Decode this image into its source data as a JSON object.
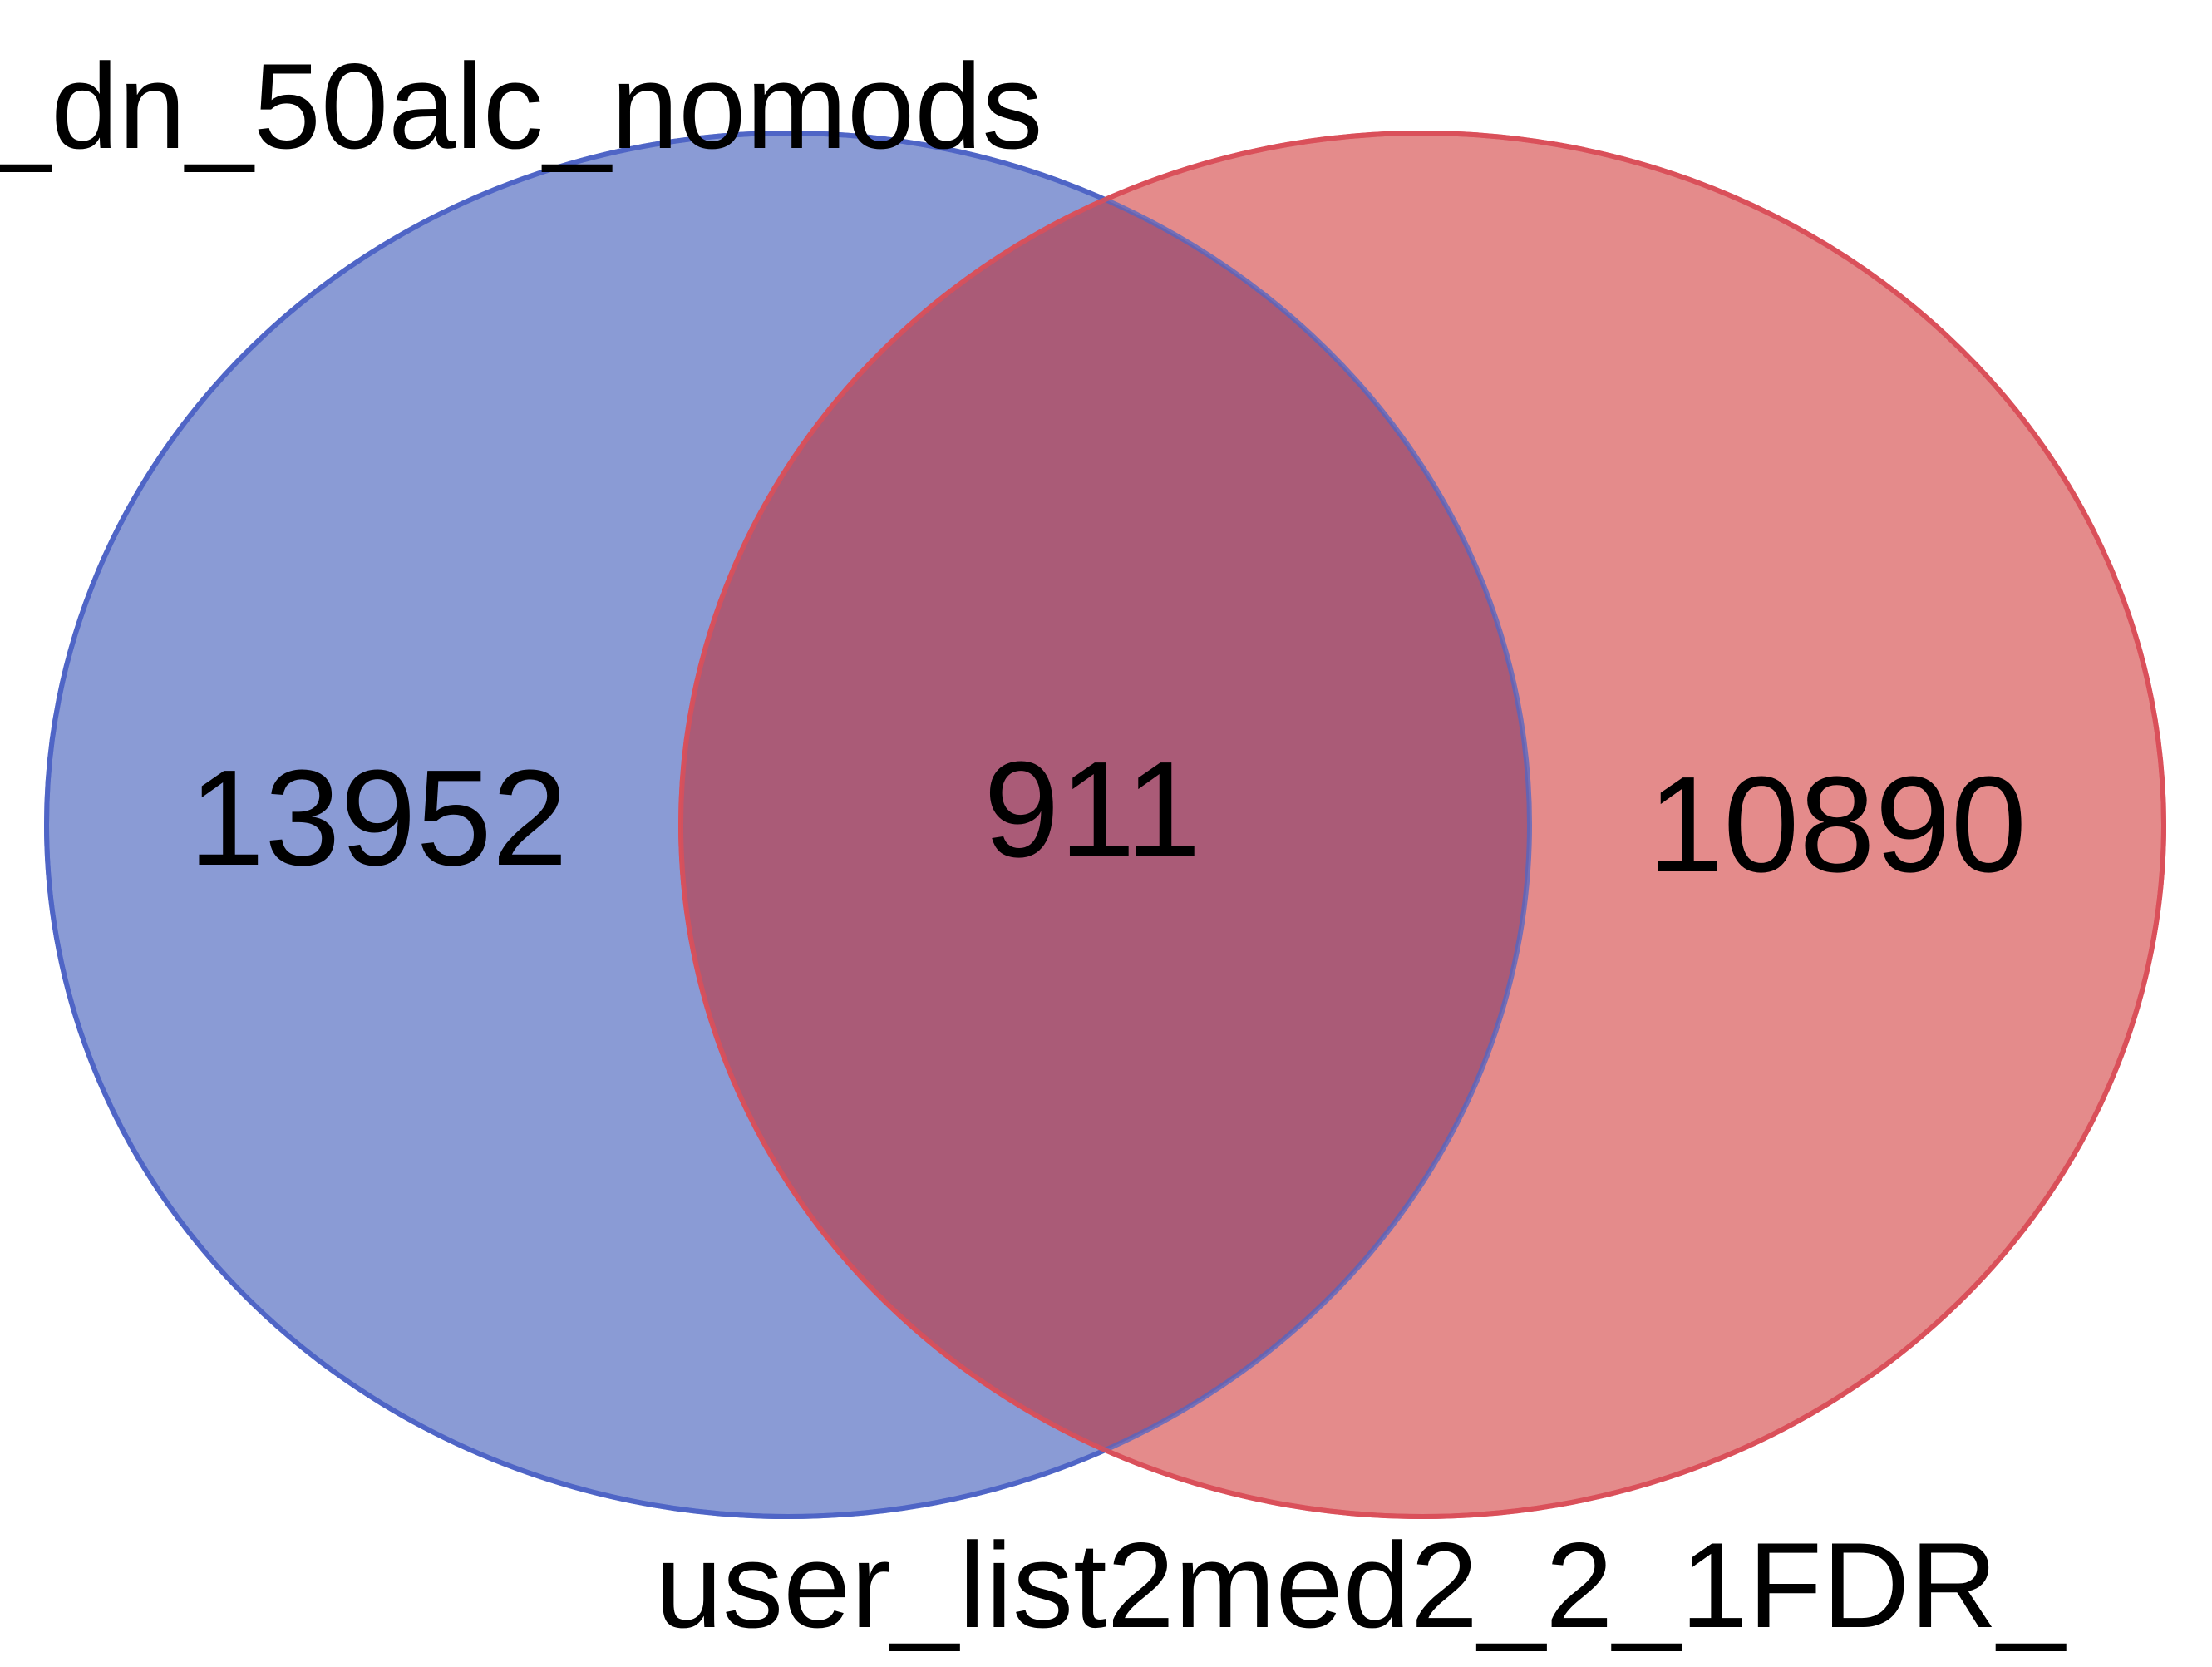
{
  "venn": {
    "sets": [
      {
        "label": "_dn_50alc_nomods",
        "fill_color": "#8a9bd5",
        "stroke_color": "#4f66c5"
      },
      {
        "label": "user_list2med2_2_1FDR_",
        "fill_color": "#e48b8b",
        "stroke_color": "#d9505a"
      }
    ],
    "overlap_color": "#aa5b77",
    "counts": {
      "left_only": "13952",
      "intersection": "911",
      "right_only": "10890"
    }
  }
}
